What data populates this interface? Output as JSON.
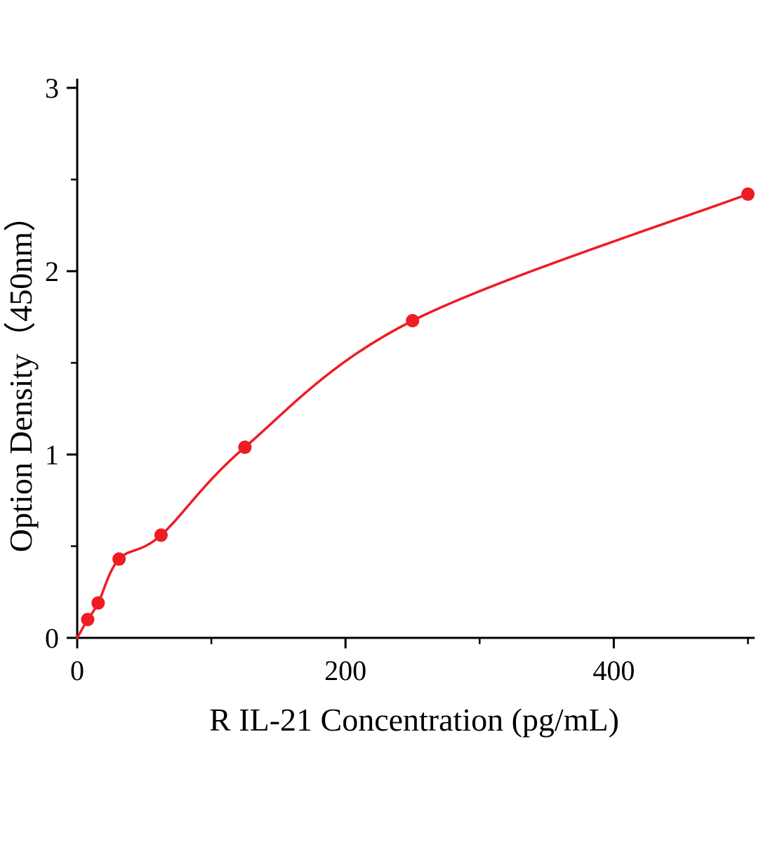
{
  "chart_data": {
    "type": "scatter",
    "title": "",
    "xlabel": "R IL-21 Concentration (pg/mL)",
    "ylabel": "Option Density（450nm）",
    "x": [
      7.8,
      15.6,
      31.2,
      62.5,
      125,
      250,
      500
    ],
    "y": [
      0.1,
      0.19,
      0.43,
      0.56,
      1.04,
      1.73,
      2.42
    ],
    "curve_anchor": [
      0,
      0
    ],
    "xlim": [
      0,
      505
    ],
    "ylim": [
      0,
      3.05
    ],
    "x_major_ticks": [
      0,
      200,
      400
    ],
    "x_minor_ticks": [
      100,
      300,
      500
    ],
    "y_major_ticks": [
      0,
      1,
      2,
      3
    ],
    "y_minor_ticks": [
      0.5,
      1.5,
      2.5
    ],
    "grid": false,
    "legend": null,
    "colors": {
      "points": "#ee1c23",
      "curve": "#ee1c23",
      "axis": "#000000",
      "text": "#000000"
    }
  }
}
